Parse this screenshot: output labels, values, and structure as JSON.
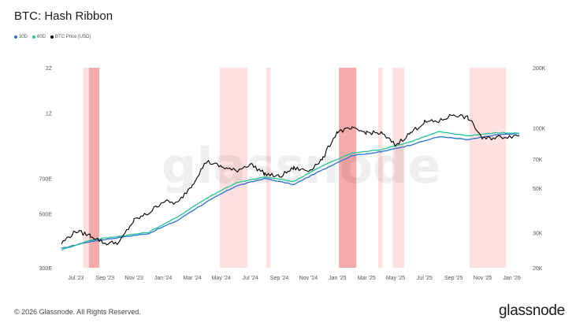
{
  "header": {
    "title": "BTC: Hash Ribbon"
  },
  "footer": {
    "copyright": "© 2026 Glassnode. All Rights Reserved.",
    "brand": "glassnode",
    "watermark": "glassnode"
  },
  "colors": {
    "sma30": "#2f6fd6",
    "sma60": "#21c49a",
    "price": "#000000",
    "band_light": "#fde0df",
    "band_dark": "#f6aaa9"
  },
  "chart_data": {
    "type": "line",
    "title": "BTC: Hash Ribbon",
    "legend_position": "top-left",
    "grid": false,
    "x_ticks": [
      "Jul '23",
      "Sep '23",
      "Nov '23",
      "Jan '24",
      "Mar '24",
      "May '24",
      "Jul '24",
      "Sep '24",
      "Nov '24",
      "Jan '25",
      "Mar '25",
      "May '25",
      "Jul '25",
      "Sep '25",
      "Nov '25",
      "Jan '26"
    ],
    "xlim": [
      "Jun '23",
      "Feb '26"
    ],
    "y_left": {
      "ticks": [
        "300E",
        "500E",
        "700E",
        "1Z",
        "2Z"
      ],
      "ylim": [
        300,
        2000
      ]
    },
    "y_right": {
      "ticks": [
        "20K",
        "30K",
        "50K",
        "70K",
        "100K",
        "200K"
      ],
      "ylim": [
        20000,
        200000
      ],
      "scale": "log"
    },
    "series": [
      {
        "name": "30D",
        "axis": "left",
        "color": "#2f6fd6",
        "x": [
          0,
          2,
          4,
          6,
          8,
          10,
          12,
          14,
          16,
          18,
          20,
          22,
          24,
          26,
          28,
          30,
          31.5
        ],
        "values": [
          360,
          385,
          400,
          415,
          470,
          560,
          650,
          700,
          660,
          760,
          870,
          900,
          960,
          1040,
          1010,
          1060,
          1070
        ]
      },
      {
        "name": "60D",
        "axis": "left",
        "color": "#21c49a",
        "x": [
          0,
          2,
          4,
          6,
          8,
          10,
          12,
          14,
          16,
          18,
          20,
          22,
          24,
          26,
          28,
          30,
          31.5
        ],
        "values": [
          355,
          390,
          405,
          420,
          485,
          580,
          670,
          710,
          680,
          790,
          890,
          920,
          990,
          1090,
          1050,
          1080,
          1075
        ]
      },
      {
        "name": "BTC Price [USD]",
        "axis": "right",
        "color": "#000000",
        "x": [
          0,
          1,
          2,
          3,
          4,
          5,
          6,
          7,
          8,
          9,
          10,
          11,
          12,
          13,
          14,
          15,
          16,
          17,
          18,
          19,
          20,
          21,
          22,
          23,
          24,
          25,
          26,
          27,
          28,
          29,
          30,
          31,
          31.5
        ],
        "values": [
          26500,
          30500,
          29000,
          26500,
          26800,
          34500,
          37500,
          43000,
          42000,
          52000,
          68000,
          64000,
          61000,
          66000,
          59000,
          57000,
          63000,
          61000,
          70000,
          96000,
          99000,
          95000,
          94000,
          82000,
          94000,
          107000,
          108000,
          117000,
          112000,
          88000,
          90000,
          91000,
          92000
        ]
      }
    ],
    "bands": [
      {
        "from": 1.5,
        "to": 1.9,
        "shade": "light"
      },
      {
        "from": 1.9,
        "to": 2.6,
        "shade": "dark"
      },
      {
        "from": 10.9,
        "to": 11.8,
        "shade": "light"
      },
      {
        "from": 11.8,
        "to": 12.8,
        "shade": "light"
      },
      {
        "from": 14.1,
        "to": 14.4,
        "shade": "light"
      },
      {
        "from": 19.1,
        "to": 20.3,
        "shade": "dark"
      },
      {
        "from": 21.8,
        "to": 22.1,
        "shade": "light"
      },
      {
        "from": 22.8,
        "to": 23.6,
        "shade": "light"
      },
      {
        "from": 28.1,
        "to": 29.4,
        "shade": "light"
      },
      {
        "from": 29.4,
        "to": 30.6,
        "shade": "light"
      }
    ]
  }
}
